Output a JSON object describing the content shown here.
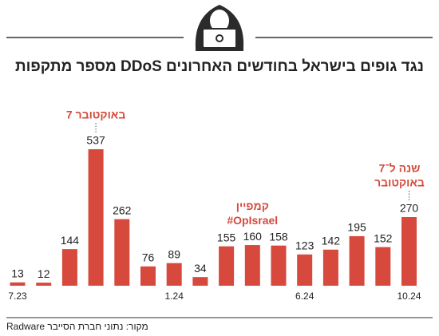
{
  "chart_data": {
    "type": "bar",
    "title": "מספר מתקפות DDoS נגד גופים בישראל בחודשים האחרונים",
    "categories": [
      "7.23",
      null,
      null,
      null,
      null,
      null,
      "1.24",
      null,
      null,
      null,
      null,
      "6.24",
      null,
      null,
      null,
      "10.24"
    ],
    "values": [
      13,
      12,
      144,
      537,
      262,
      76,
      89,
      34,
      155,
      160,
      158,
      123,
      142,
      195,
      152,
      270
    ],
    "color": "#d6493c",
    "annotations": [
      {
        "lines": [
          "7 באוקטובר"
        ]
      },
      {
        "lines": [
          "קמפיין",
          "#OpIsrael"
        ]
      },
      {
        "lines": [
          "שנה ל־7",
          "באוקטובר"
        ]
      }
    ],
    "source": "מקור: נתוני חברת הסייבר Radware"
  }
}
